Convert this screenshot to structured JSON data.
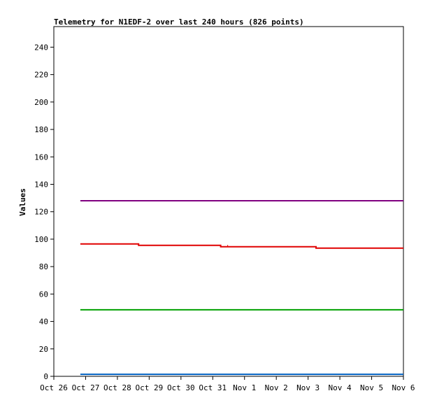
{
  "chart_data": {
    "type": "line",
    "title": "Telemetry for N1EDF-2 over last 240 hours (826 points)",
    "xlabel": "",
    "ylabel": "Values",
    "ylim": [
      0,
      255
    ],
    "yticks": [
      0,
      20,
      40,
      60,
      80,
      100,
      120,
      140,
      160,
      180,
      200,
      220,
      240
    ],
    "xlim": [
      "Oct 26",
      "Nov 6"
    ],
    "xticks": [
      "Oct 26",
      "Oct 27",
      "Oct 28",
      "Oct 29",
      "Oct 30",
      "Oct 31",
      "Nov 1",
      "Nov 2",
      "Nov 3",
      "Nov 4",
      "Nov 5",
      "Nov 6"
    ],
    "grid": false,
    "legend": "none",
    "series": [
      {
        "color": "#800080",
        "x": [
          "Oct 26 20:00",
          "Nov 5 24:00"
        ],
        "values": [
          128,
          128
        ]
      },
      {
        "color": "#e00000",
        "x": [
          "Oct 26 20:00",
          "Oct 28 16:00",
          "Oct 28 16:00",
          "Oct 31 06:00",
          "Oct 31 06:00",
          "Nov 3 06:00",
          "Nov 3 06:00",
          "Nov 5 24:00"
        ],
        "values": [
          96.5,
          96.5,
          95.5,
          95.5,
          94.5,
          94.5,
          93.5,
          93.5
        ]
      },
      {
        "color": "#00a000",
        "x": [
          "Oct 26 20:00",
          "Nov 5 24:00"
        ],
        "values": [
          48.5,
          48.5
        ]
      },
      {
        "color": "#0060c0",
        "x": [
          "Oct 26 20:00",
          "Nov 5 24:00"
        ],
        "values": [
          1.5,
          1.5
        ]
      }
    ]
  }
}
